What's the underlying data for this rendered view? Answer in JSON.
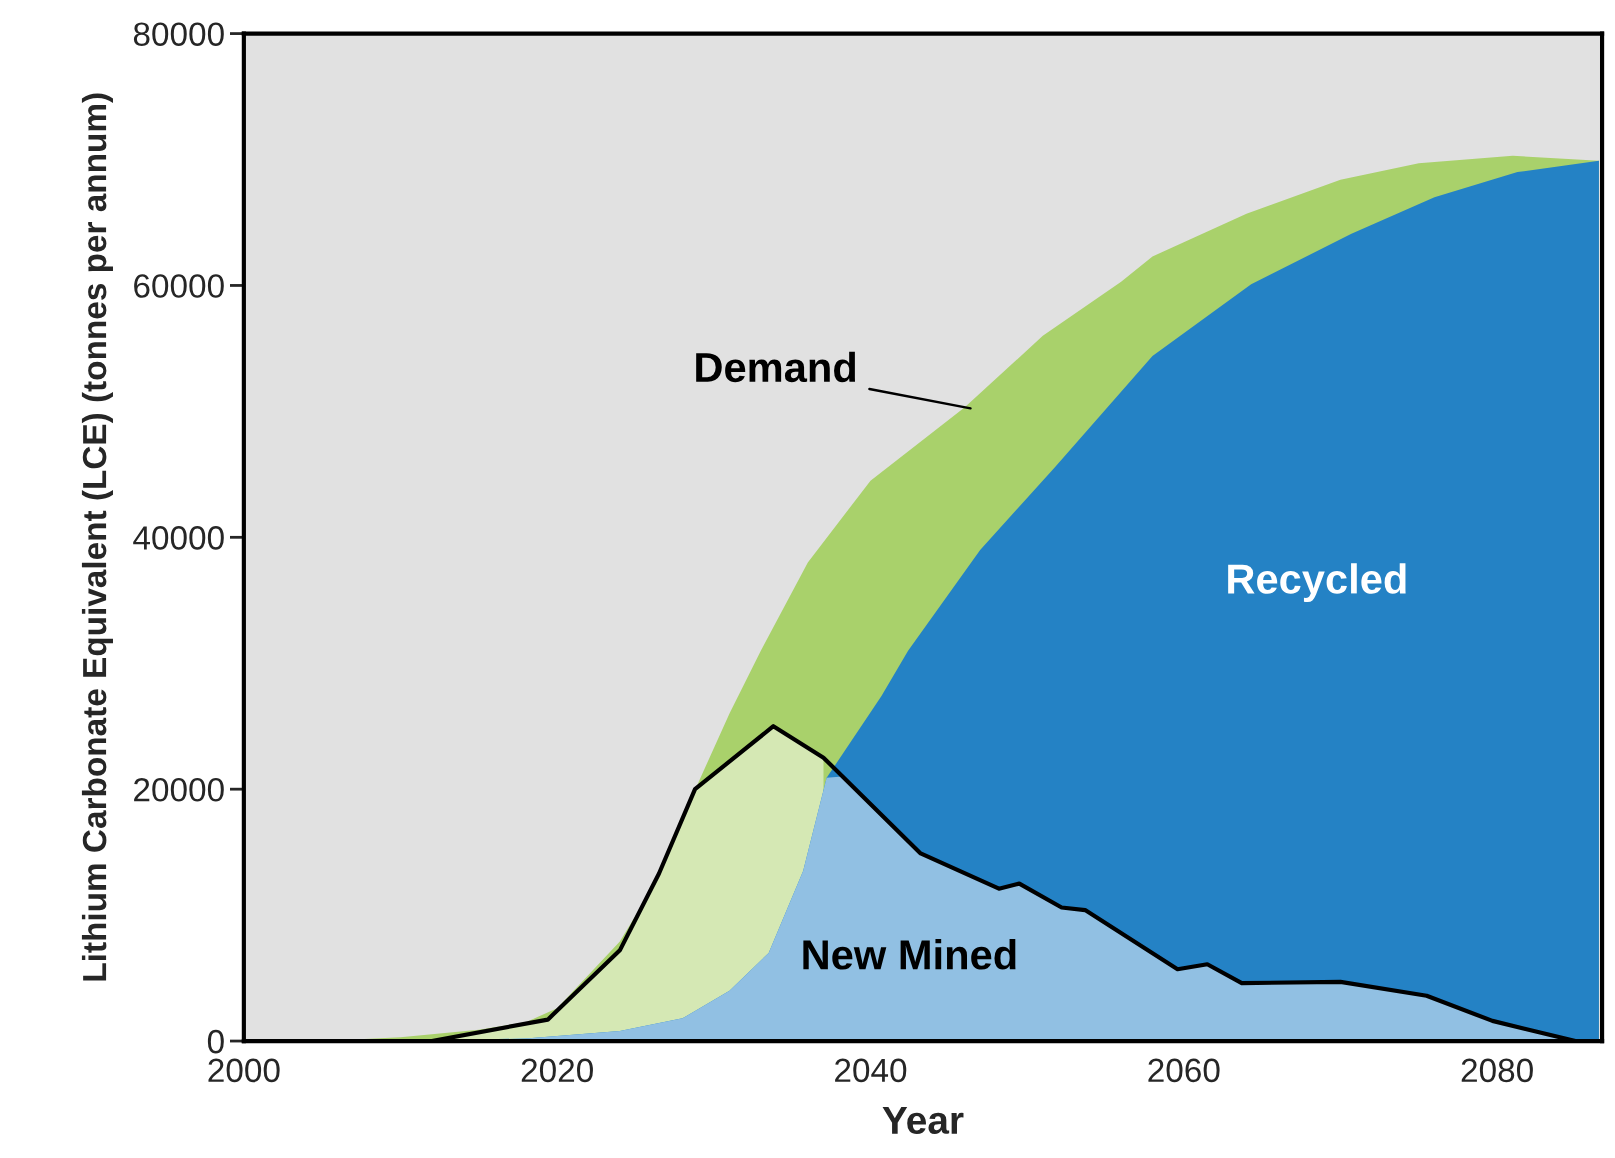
{
  "chart_data": {
    "type": "area",
    "xlabel": "Year",
    "ylabel": "Lithium Carbonate Equivalent (LCE) (tonnes per annum)",
    "xlim": [
      2000,
      2086.7
    ],
    "xticks": [
      2000,
      2020,
      2040,
      2060,
      2080
    ],
    "ylim": [
      0,
      80000
    ],
    "yticks": [
      0,
      20000,
      40000,
      60000,
      80000
    ],
    "grid": false,
    "legend": false,
    "series": [
      {
        "color": "#a9d16b",
        "x": [
          2005,
          2010,
          2015,
          2018,
          2020,
          2024,
          2026.5,
          2029,
          2031,
          2033,
          2036,
          2040,
          2046,
          2051,
          2056,
          2058,
          2064,
          2070,
          2075,
          2081,
          2086.5
        ],
        "values": [
          0,
          300,
          900,
          1500,
          2600,
          7900,
          13000,
          20500,
          26000,
          31000,
          38000,
          44500,
          50300,
          56000,
          60300,
          62300,
          65700,
          68400,
          69700,
          70300,
          69900
        ]
      },
      {
        "color": "#d5e8b4",
        "x": [
          2012,
          2019.4,
          2024,
          2026.5,
          2028.8,
          2033.8,
          2037
        ],
        "values": [
          0,
          1700,
          7200,
          13300,
          20000,
          25000,
          22500
        ]
      },
      {
        "color": "#2482c5",
        "x": [
          2010,
          2018,
          2024,
          2028,
          2031,
          2033.5,
          2035.7,
          2037.2,
          2040.7,
          2042.4,
          2047,
          2051.8,
          2058,
          2064.3,
          2070.7,
          2076,
          2081.3,
          2086.5
        ],
        "values": [
          0,
          200,
          800,
          1800,
          4000,
          7000,
          13500,
          20900,
          27400,
          31000,
          39000,
          45600,
          54400,
          60100,
          64100,
          67000,
          69000,
          69900
        ]
      },
      {
        "color": "#91c0e3",
        "x": [
          2010,
          2018,
          2024,
          2028,
          2031,
          2033.5,
          2035.7,
          2037.2,
          2038.2,
          2043.2,
          2048.2,
          2049.5,
          2052.2,
          2053.7,
          2059.6,
          2061.5,
          2063.7,
          2070,
          2075.5,
          2079.7,
          2085
        ],
        "values": [
          0,
          200,
          800,
          1800,
          4000,
          7000,
          13500,
          20900,
          21000,
          14900,
          12100,
          12500,
          10600,
          10400,
          5700,
          6100,
          4600,
          4700,
          3600,
          1600,
          0
        ]
      },
      {
        "type": "line",
        "color": "#000000",
        "x": [
          2012,
          2019.4,
          2024,
          2026.5,
          2028.8,
          2033.8,
          2037,
          2043.2,
          2048.2,
          2049.5,
          2052.2,
          2053.7,
          2059.6,
          2061.5,
          2063.7,
          2070,
          2075.5,
          2079.7,
          2085
        ],
        "values": [
          0,
          1700,
          7200,
          13300,
          20000,
          25000,
          22500,
          14900,
          12100,
          12500,
          10600,
          10400,
          5700,
          6100,
          4600,
          4700,
          3600,
          1600,
          0
        ]
      }
    ],
    "annotations": [
      "Demand",
      "Recycled",
      "New Mined"
    ]
  }
}
